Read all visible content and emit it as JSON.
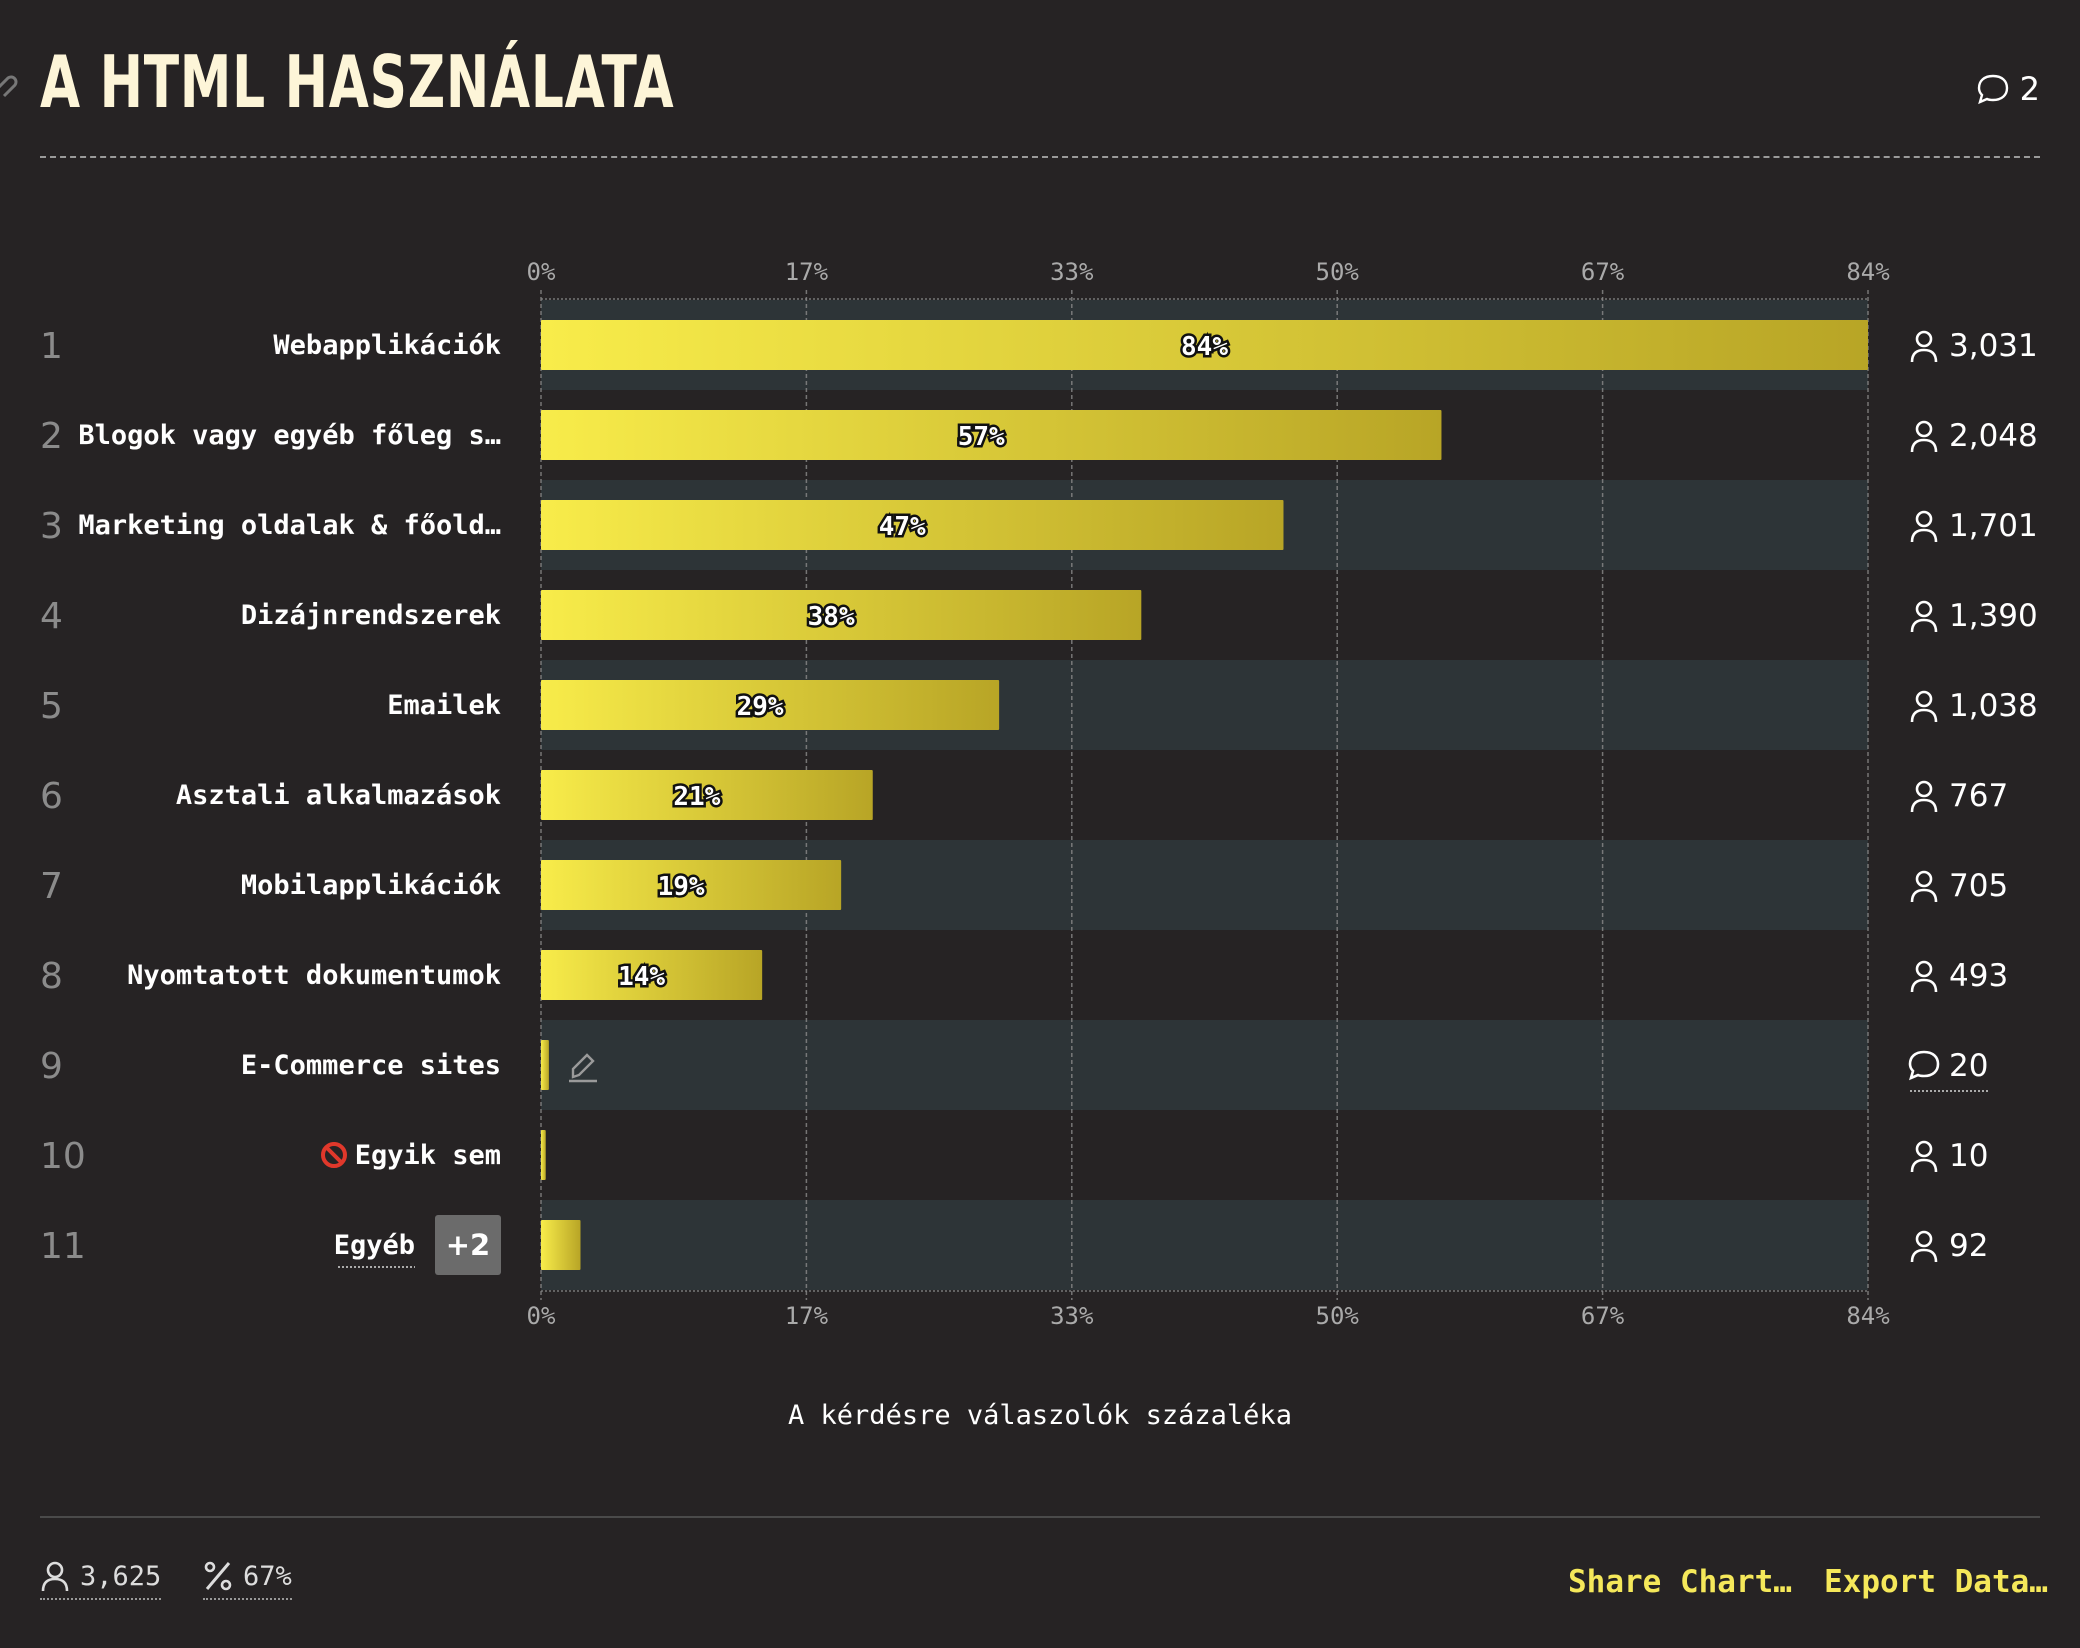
{
  "title": "A HTML HASZNÁLATA",
  "comment_count": "2",
  "axis_ticks": [
    "0%",
    "17%",
    "33%",
    "50%",
    "67%",
    "84%"
  ],
  "axis_max": 84,
  "axis_title": "A kérdésre válaszolók százaléka",
  "chart_data": {
    "type": "bar",
    "orientation": "horizontal",
    "categories": [
      "Webapplikációk",
      "Blogok vagy egyéb főleg s…",
      "Marketing oldalak & főold…",
      "Dizájnrendszerek",
      "Emailek",
      "Asztali alkalmazások",
      "Mobilapplikációk",
      "Nyomtatott dokumentumok",
      "E-Commerce sites",
      "Egyik sem",
      "Egyéb"
    ],
    "ranks": [
      "1",
      "2",
      "3",
      "4",
      "5",
      "6",
      "7",
      "8",
      "9",
      "10",
      "11"
    ],
    "values": [
      84,
      57,
      47,
      38,
      29,
      21,
      19,
      14,
      0.5,
      0.3,
      2.5
    ],
    "value_labels": [
      "84%",
      "57%",
      "47%",
      "38%",
      "29%",
      "21%",
      "19%",
      "14%",
      "",
      "",
      ""
    ],
    "counts": [
      "3,031",
      "2,048",
      "1,701",
      "1,390",
      "1,038",
      "767",
      "705",
      "493",
      "20",
      "10",
      "92"
    ],
    "count_icons": [
      "person-icon",
      "person-icon",
      "person-icon",
      "person-icon",
      "person-icon",
      "person-icon",
      "person-icon",
      "person-icon",
      "comment-icon",
      "person-icon",
      "person-icon"
    ],
    "xlim": [
      0,
      84
    ],
    "xlabel": "A kérdésre válaszolók százaléka",
    "other_badge": "+2",
    "none_icon": "prohibited-icon",
    "edit_icon": "pencil-icon",
    "colors": {
      "bar_start": "#f8ec4a",
      "bar_end": "#b8a526",
      "band": "#2d3437",
      "background": "#262324"
    }
  },
  "footer": {
    "respondents": "3,625",
    "percent": "67%",
    "share_label": "Share Chart…",
    "export_label": "Export Data…"
  }
}
